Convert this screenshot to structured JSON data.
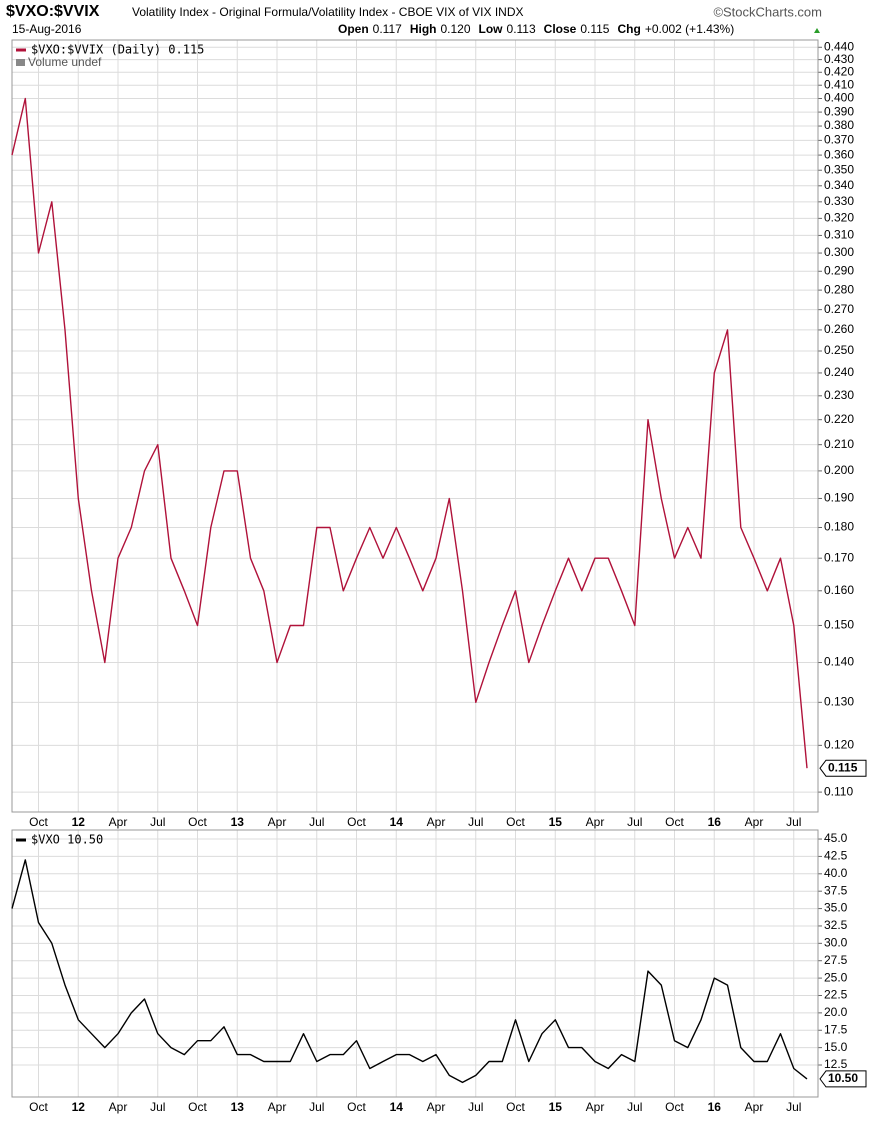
{
  "chart_data": [
    {
      "type": "line",
      "title": "$VXO:$VVIX",
      "subtitle": "Volatility Index - Original Formula/Volatility Index - CBOE VIX of VIX INDX",
      "source": "©StockCharts.com",
      "date": "15-Aug-2016",
      "ohlc": [
        [
          "Open",
          "0.117"
        ],
        [
          "High",
          "0.120"
        ],
        [
          "Low",
          "0.113"
        ],
        [
          "Close",
          "0.115"
        ],
        [
          "Chg",
          "+0.002 (+1.43%)"
        ]
      ],
      "volume_label": "Volume undef",
      "log_scale": true,
      "grid": true,
      "x": [
        "2011-08",
        "2011-09",
        "2011-10",
        "2011-11",
        "2011-12",
        "2012-01",
        "2012-02",
        "2012-03",
        "2012-04",
        "2012-05",
        "2012-06",
        "2012-07",
        "2012-08",
        "2012-09",
        "2012-10",
        "2012-11",
        "2012-12",
        "2013-01",
        "2013-02",
        "2013-03",
        "2013-04",
        "2013-05",
        "2013-06",
        "2013-07",
        "2013-08",
        "2013-09",
        "2013-10",
        "2013-11",
        "2013-12",
        "2014-01",
        "2014-02",
        "2014-03",
        "2014-04",
        "2014-05",
        "2014-06",
        "2014-07",
        "2014-08",
        "2014-09",
        "2014-10",
        "2014-11",
        "2014-12",
        "2015-01",
        "2015-02",
        "2015-03",
        "2015-04",
        "2015-05",
        "2015-06",
        "2015-07",
        "2015-08",
        "2015-09",
        "2015-10",
        "2015-11",
        "2015-12",
        "2016-01",
        "2016-02",
        "2016-03",
        "2016-04",
        "2016-05",
        "2016-06",
        "2016-07",
        "2016-08"
      ],
      "series": [
        {
          "name": "$VXO:$VVIX (Daily) 0.115",
          "color": "#b0123a",
          "last_label": "0.115",
          "values": [
            0.36,
            0.4,
            0.3,
            0.33,
            0.26,
            0.19,
            0.16,
            0.14,
            0.17,
            0.18,
            0.2,
            0.21,
            0.17,
            0.16,
            0.15,
            0.18,
            0.2,
            0.2,
            0.17,
            0.16,
            0.14,
            0.15,
            0.15,
            0.18,
            0.18,
            0.16,
            0.17,
            0.18,
            0.17,
            0.18,
            0.17,
            0.16,
            0.17,
            0.19,
            0.16,
            0.13,
            0.14,
            0.15,
            0.16,
            0.14,
            0.15,
            0.16,
            0.17,
            0.16,
            0.17,
            0.17,
            0.16,
            0.15,
            0.22,
            0.19,
            0.17,
            0.18,
            0.17,
            0.24,
            0.26,
            0.18,
            0.17,
            0.16,
            0.17,
            0.15,
            0.115
          ]
        }
      ],
      "xlim": [
        "2011-08",
        "2016-08"
      ],
      "xticks": [
        {
          "value": "2011-10",
          "label": "Oct"
        },
        {
          "value": "2012-01",
          "label": "12"
        },
        {
          "value": "2012-04",
          "label": "Apr"
        },
        {
          "value": "2012-07",
          "label": "Jul"
        },
        {
          "value": "2012-10",
          "label": "Oct"
        },
        {
          "value": "2013-01",
          "label": "13"
        },
        {
          "value": "2013-04",
          "label": "Apr"
        },
        {
          "value": "2013-07",
          "label": "Jul"
        },
        {
          "value": "2013-10",
          "label": "Oct"
        },
        {
          "value": "2014-01",
          "label": "14"
        },
        {
          "value": "2014-04",
          "label": "Apr"
        },
        {
          "value": "2014-07",
          "label": "Jul"
        },
        {
          "value": "2014-10",
          "label": "Oct"
        },
        {
          "value": "2015-01",
          "label": "15"
        },
        {
          "value": "2015-04",
          "label": "Apr"
        },
        {
          "value": "2015-07",
          "label": "Jul"
        },
        {
          "value": "2015-10",
          "label": "Oct"
        },
        {
          "value": "2016-01",
          "label": "16"
        },
        {
          "value": "2016-04",
          "label": "Apr"
        },
        {
          "value": "2016-07",
          "label": "Jul"
        }
      ],
      "ylim": [
        0.106,
        0.446
      ],
      "yticks": [
        {
          "value": 0.11,
          "label": "0.110"
        },
        {
          "value": 0.12,
          "label": "0.120"
        },
        {
          "value": 0.13,
          "label": "0.130"
        },
        {
          "value": 0.14,
          "label": "0.140"
        },
        {
          "value": 0.15,
          "label": "0.150"
        },
        {
          "value": 0.16,
          "label": "0.160"
        },
        {
          "value": 0.17,
          "label": "0.170"
        },
        {
          "value": 0.18,
          "label": "0.180"
        },
        {
          "value": 0.19,
          "label": "0.190"
        },
        {
          "value": 0.2,
          "label": "0.200"
        },
        {
          "value": 0.21,
          "label": "0.210"
        },
        {
          "value": 0.22,
          "label": "0.220"
        },
        {
          "value": 0.23,
          "label": "0.230"
        },
        {
          "value": 0.24,
          "label": "0.240"
        },
        {
          "value": 0.25,
          "label": "0.250"
        },
        {
          "value": 0.26,
          "label": "0.260"
        },
        {
          "value": 0.27,
          "label": "0.270"
        },
        {
          "value": 0.28,
          "label": "0.280"
        },
        {
          "value": 0.29,
          "label": "0.290"
        },
        {
          "value": 0.3,
          "label": "0.300"
        },
        {
          "value": 0.31,
          "label": "0.310"
        },
        {
          "value": 0.32,
          "label": "0.320"
        },
        {
          "value": 0.33,
          "label": "0.330"
        },
        {
          "value": 0.34,
          "label": "0.340"
        },
        {
          "value": 0.35,
          "label": "0.350"
        },
        {
          "value": 0.36,
          "label": "0.360"
        },
        {
          "value": 0.37,
          "label": "0.370"
        },
        {
          "value": 0.38,
          "label": "0.380"
        },
        {
          "value": 0.39,
          "label": "0.390"
        },
        {
          "value": 0.4,
          "label": "0.400"
        },
        {
          "value": 0.41,
          "label": "0.410"
        },
        {
          "value": 0.42,
          "label": "0.420"
        },
        {
          "value": 0.43,
          "label": "0.430"
        },
        {
          "value": 0.44,
          "label": "0.440"
        }
      ]
    },
    {
      "type": "line",
      "log_scale": false,
      "grid": true,
      "x": [
        "2011-08",
        "2011-09",
        "2011-10",
        "2011-11",
        "2011-12",
        "2012-01",
        "2012-02",
        "2012-03",
        "2012-04",
        "2012-05",
        "2012-06",
        "2012-07",
        "2012-08",
        "2012-09",
        "2012-10",
        "2012-11",
        "2012-12",
        "2013-01",
        "2013-02",
        "2013-03",
        "2013-04",
        "2013-05",
        "2013-06",
        "2013-07",
        "2013-08",
        "2013-09",
        "2013-10",
        "2013-11",
        "2013-12",
        "2014-01",
        "2014-02",
        "2014-03",
        "2014-04",
        "2014-05",
        "2014-06",
        "2014-07",
        "2014-08",
        "2014-09",
        "2014-10",
        "2014-11",
        "2014-12",
        "2015-01",
        "2015-02",
        "2015-03",
        "2015-04",
        "2015-05",
        "2015-06",
        "2015-07",
        "2015-08",
        "2015-09",
        "2015-10",
        "2015-11",
        "2015-12",
        "2016-01",
        "2016-02",
        "2016-03",
        "2016-04",
        "2016-05",
        "2016-06",
        "2016-07",
        "2016-08"
      ],
      "series": [
        {
          "name": "$VXO 10.50",
          "color": "#000000",
          "last_label": "10.50",
          "values": [
            35,
            42,
            33,
            30,
            24,
            19,
            17,
            15,
            17,
            20,
            22,
            17,
            15,
            14,
            16,
            16,
            18,
            14,
            14,
            13,
            13,
            13,
            17,
            13,
            14,
            14,
            16,
            12,
            13,
            14,
            14,
            13,
            14,
            11,
            10,
            11,
            13,
            13,
            19,
            13,
            17,
            19,
            15,
            15,
            13,
            12,
            14,
            13,
            26,
            24,
            16,
            15,
            19,
            25,
            24,
            15,
            13,
            13,
            17,
            12,
            10.5
          ]
        }
      ],
      "xlim": [
        "2011-08",
        "2016-08"
      ],
      "xticks": [
        {
          "value": "2011-10",
          "label": "Oct"
        },
        {
          "value": "2012-01",
          "label": "12"
        },
        {
          "value": "2012-04",
          "label": "Apr"
        },
        {
          "value": "2012-07",
          "label": "Jul"
        },
        {
          "value": "2012-10",
          "label": "Oct"
        },
        {
          "value": "2013-01",
          "label": "13"
        },
        {
          "value": "2013-04",
          "label": "Apr"
        },
        {
          "value": "2013-07",
          "label": "Jul"
        },
        {
          "value": "2013-10",
          "label": "Oct"
        },
        {
          "value": "2014-01",
          "label": "14"
        },
        {
          "value": "2014-04",
          "label": "Apr"
        },
        {
          "value": "2014-07",
          "label": "Jul"
        },
        {
          "value": "2014-10",
          "label": "Oct"
        },
        {
          "value": "2015-01",
          "label": "15"
        },
        {
          "value": "2015-04",
          "label": "Apr"
        },
        {
          "value": "2015-07",
          "label": "Jul"
        },
        {
          "value": "2015-10",
          "label": "Oct"
        },
        {
          "value": "2016-01",
          "label": "16"
        },
        {
          "value": "2016-04",
          "label": "Apr"
        },
        {
          "value": "2016-07",
          "label": "Jul"
        }
      ],
      "ylim": [
        7.9,
        46.3
      ],
      "yticks": [
        12.5,
        {
          "value": 15,
          "label": "15.0"
        },
        17.5,
        {
          "value": 20,
          "label": "20.0"
        },
        22.5,
        {
          "value": 25,
          "label": "25.0"
        },
        27.5,
        {
          "value": 30,
          "label": "30.0"
        },
        32.5,
        {
          "value": 35,
          "label": "35.0"
        },
        37.5,
        {
          "value": 40,
          "label": "40.0"
        },
        42.5,
        {
          "value": 45,
          "label": "45.0"
        }
      ]
    }
  ]
}
